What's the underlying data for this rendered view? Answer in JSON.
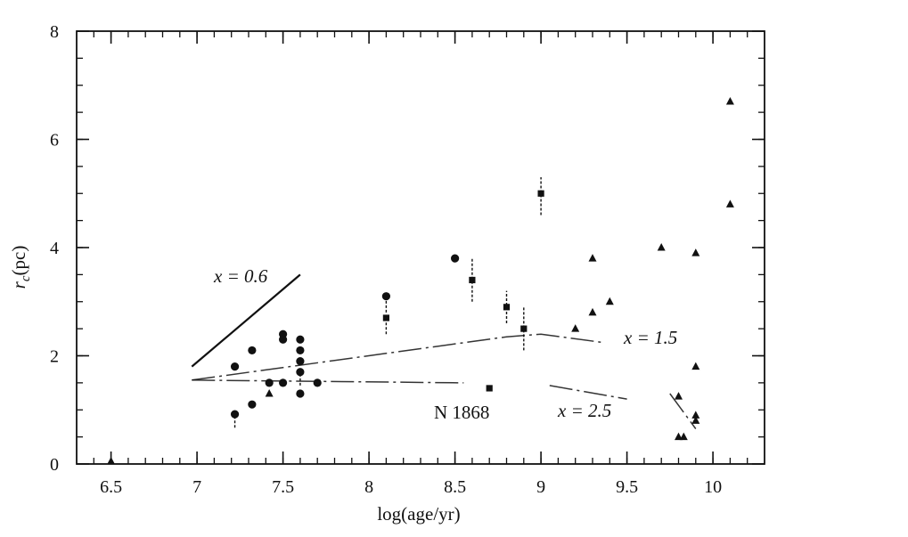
{
  "chart_data": {
    "type": "scatter",
    "xlabel": "log(age/yr)",
    "ylabel_main": "r",
    "ylabel_sub": "c",
    "ylabel_unit": "(pc)",
    "xlim": [
      6.3,
      10.3
    ],
    "ylim": [
      0,
      8
    ],
    "x_ticks": [
      "6.5",
      "7",
      "7.5",
      "8",
      "8.5",
      "9",
      "9.5",
      "10"
    ],
    "x_tick_values": [
      6.5,
      7,
      7.5,
      8,
      8.5,
      9,
      9.5,
      10
    ],
    "y_ticks": [
      "0",
      "2",
      "4",
      "6",
      "8"
    ],
    "y_tick_values": [
      0,
      2,
      4,
      6,
      8
    ],
    "grid": false,
    "annotations": {
      "x06": "x = 0.6",
      "x15": "x = 1.5",
      "x25": "x = 2.5",
      "n1868": "N 1868"
    },
    "series": [
      {
        "marker": "circle",
        "points": [
          {
            "x": 7.22,
            "y": 1.8
          },
          {
            "x": 7.22,
            "y": 0.92,
            "err_lo": 0.25
          },
          {
            "x": 7.32,
            "y": 2.1
          },
          {
            "x": 7.32,
            "y": 1.1
          },
          {
            "x": 7.42,
            "y": 1.5
          },
          {
            "x": 7.5,
            "y": 2.4
          },
          {
            "x": 7.5,
            "y": 2.3
          },
          {
            "x": 7.5,
            "y": 1.5
          },
          {
            "x": 7.6,
            "y": 2.3
          },
          {
            "x": 7.6,
            "y": 2.1
          },
          {
            "x": 7.6,
            "y": 1.9
          },
          {
            "x": 7.6,
            "y": 1.7,
            "err_lo": 0.25
          },
          {
            "x": 7.6,
            "y": 1.3
          },
          {
            "x": 7.7,
            "y": 1.5
          },
          {
            "x": 8.1,
            "y": 3.1,
            "err_lo": 0.3
          },
          {
            "x": 8.5,
            "y": 3.8
          }
        ]
      },
      {
        "marker": "square",
        "points": [
          {
            "x": 8.1,
            "y": 2.7,
            "err_lo": 0.3
          },
          {
            "x": 8.6,
            "y": 3.4,
            "err_lo": 0.4,
            "err_hi": 0.4
          },
          {
            "x": 8.7,
            "y": 1.4
          },
          {
            "x": 8.8,
            "y": 2.9,
            "err_lo": 0.3,
            "err_hi": 0.3
          },
          {
            "x": 8.9,
            "y": 2.5,
            "err_lo": 0.4,
            "err_hi": 0.4
          },
          {
            "x": 9.0,
            "y": 5.0,
            "err_lo": 0.4,
            "err_hi": 0.3
          }
        ]
      },
      {
        "marker": "triangle",
        "points": [
          {
            "x": 6.5,
            "y": 0.05
          },
          {
            "x": 7.42,
            "y": 1.3
          },
          {
            "x": 9.2,
            "y": 2.5
          },
          {
            "x": 9.3,
            "y": 3.8
          },
          {
            "x": 9.3,
            "y": 2.8
          },
          {
            "x": 9.4,
            "y": 3.0
          },
          {
            "x": 9.7,
            "y": 4.0
          },
          {
            "x": 9.8,
            "y": 1.25
          },
          {
            "x": 9.8,
            "y": 0.5
          },
          {
            "x": 9.83,
            "y": 0.5
          },
          {
            "x": 9.9,
            "y": 3.9
          },
          {
            "x": 9.9,
            "y": 1.8
          },
          {
            "x": 9.9,
            "y": 0.9
          },
          {
            "x": 9.9,
            "y": 0.8
          },
          {
            "x": 10.1,
            "y": 6.7
          },
          {
            "x": 10.1,
            "y": 4.8
          }
        ]
      }
    ],
    "lines": [
      {
        "name": "x = 0.6",
        "style": "solid",
        "points": [
          [
            6.97,
            1.8
          ],
          [
            7.6,
            3.5
          ]
        ]
      },
      {
        "name": "x = 1.5",
        "style": "dashdot",
        "points": [
          [
            6.97,
            1.55
          ],
          [
            8.8,
            2.35
          ],
          [
            9.0,
            2.4
          ],
          [
            9.35,
            2.25
          ]
        ]
      },
      {
        "name": "x = 2.5",
        "style": "dashdot",
        "points": [
          [
            6.97,
            1.55
          ],
          [
            8.55,
            1.5
          ]
        ]
      },
      {
        "name": "x = 2.5 tail",
        "style": "dashdot",
        "points": [
          [
            9.05,
            1.45
          ],
          [
            9.5,
            1.2
          ]
        ]
      },
      {
        "name": "x = 2.5 end",
        "style": "dashdot",
        "points": [
          [
            9.75,
            1.3
          ],
          [
            9.9,
            0.65
          ]
        ]
      }
    ]
  }
}
